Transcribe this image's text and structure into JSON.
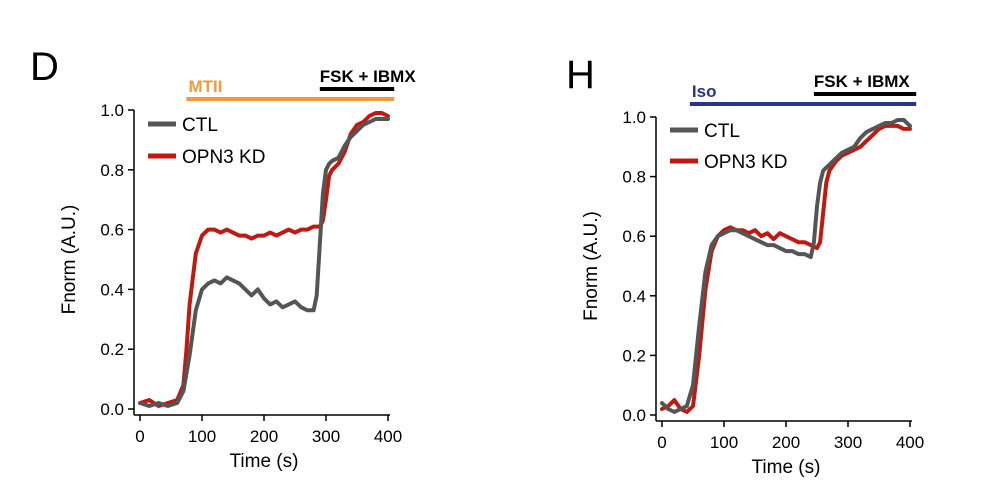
{
  "chart_data": [
    {
      "type": "line",
      "panel": "D",
      "xlabel": "Time (s)",
      "ylabel": "Fnorm  (A.U.)",
      "xlim": [
        0,
        400
      ],
      "ylim": [
        0,
        1.0
      ],
      "xticks": [
        "0",
        "100",
        "200",
        "300",
        "400"
      ],
      "yticks": [
        "0.0",
        "0.2",
        "0.4",
        "0.6",
        "0.8",
        "1.0"
      ],
      "legend_position": "top-left",
      "treatments": [
        {
          "label": "MTII",
          "start": 75,
          "end": 410,
          "color": "#f29a3c"
        },
        {
          "label": "FSK + IBMX",
          "start": 290,
          "end": 410,
          "color": "#000000"
        }
      ],
      "series": [
        {
          "name": "CTL",
          "color": "#555555",
          "x": [
            0,
            15,
            30,
            45,
            60,
            70,
            80,
            90,
            100,
            110,
            120,
            130,
            140,
            150,
            160,
            170,
            180,
            190,
            200,
            210,
            220,
            230,
            240,
            250,
            260,
            270,
            280,
            285,
            290,
            295,
            300,
            305,
            310,
            320,
            330,
            340,
            350,
            360,
            370,
            380,
            390,
            400
          ],
          "y": [
            0.02,
            0.01,
            0.02,
            0.01,
            0.02,
            0.06,
            0.18,
            0.33,
            0.4,
            0.42,
            0.43,
            0.42,
            0.44,
            0.43,
            0.42,
            0.4,
            0.38,
            0.4,
            0.37,
            0.35,
            0.36,
            0.34,
            0.35,
            0.36,
            0.34,
            0.33,
            0.33,
            0.38,
            0.55,
            0.72,
            0.8,
            0.82,
            0.83,
            0.84,
            0.88,
            0.91,
            0.93,
            0.95,
            0.96,
            0.97,
            0.97,
            0.97
          ]
        },
        {
          "name": "OPN3 KD",
          "color": "#c0190f",
          "x": [
            0,
            15,
            30,
            45,
            60,
            70,
            75,
            80,
            90,
            100,
            110,
            120,
            130,
            140,
            150,
            160,
            170,
            180,
            190,
            200,
            210,
            220,
            230,
            240,
            250,
            260,
            270,
            280,
            290,
            295,
            300,
            305,
            310,
            320,
            330,
            340,
            350,
            360,
            370,
            380,
            390,
            400
          ],
          "y": [
            0.02,
            0.03,
            0.01,
            0.02,
            0.03,
            0.08,
            0.2,
            0.35,
            0.52,
            0.58,
            0.6,
            0.6,
            0.59,
            0.6,
            0.59,
            0.58,
            0.58,
            0.57,
            0.58,
            0.58,
            0.59,
            0.58,
            0.59,
            0.6,
            0.59,
            0.6,
            0.6,
            0.61,
            0.61,
            0.63,
            0.7,
            0.78,
            0.8,
            0.82,
            0.86,
            0.92,
            0.95,
            0.96,
            0.98,
            0.99,
            0.99,
            0.98
          ]
        }
      ]
    },
    {
      "type": "line",
      "panel": "H",
      "xlabel": "Time (s)",
      "ylabel": "Fnorm  (A.U.)",
      "xlim": [
        0,
        400
      ],
      "ylim": [
        0,
        1.0
      ],
      "xticks": [
        "0",
        "100",
        "200",
        "300",
        "400"
      ],
      "yticks": [
        "0.0",
        "0.2",
        "0.4",
        "0.6",
        "0.8",
        "1.0"
      ],
      "legend_position": "top-left",
      "treatments": [
        {
          "label": "Iso",
          "start": 45,
          "end": 410,
          "color": "#29348f"
        },
        {
          "label": "FSK + IBMX",
          "start": 245,
          "end": 410,
          "color": "#000000"
        }
      ],
      "series": [
        {
          "name": "CTL",
          "color": "#555555",
          "x": [
            0,
            10,
            20,
            30,
            40,
            50,
            60,
            70,
            80,
            90,
            100,
            110,
            120,
            130,
            140,
            150,
            160,
            170,
            180,
            190,
            200,
            210,
            220,
            230,
            240,
            245,
            250,
            255,
            260,
            270,
            280,
            290,
            300,
            310,
            320,
            330,
            340,
            350,
            360,
            370,
            380,
            390,
            400
          ],
          "y": [
            0.04,
            0.02,
            0.01,
            0.02,
            0.03,
            0.1,
            0.3,
            0.48,
            0.57,
            0.6,
            0.61,
            0.62,
            0.62,
            0.61,
            0.6,
            0.59,
            0.58,
            0.57,
            0.57,
            0.56,
            0.55,
            0.55,
            0.54,
            0.54,
            0.53,
            0.58,
            0.7,
            0.78,
            0.82,
            0.84,
            0.86,
            0.88,
            0.89,
            0.9,
            0.93,
            0.95,
            0.96,
            0.97,
            0.98,
            0.98,
            0.99,
            0.99,
            0.97
          ]
        },
        {
          "name": "OPN3 KD",
          "color": "#c0190f",
          "x": [
            0,
            10,
            20,
            30,
            40,
            50,
            60,
            70,
            80,
            90,
            100,
            110,
            120,
            130,
            140,
            150,
            160,
            170,
            180,
            190,
            200,
            210,
            220,
            230,
            240,
            250,
            255,
            260,
            265,
            270,
            280,
            290,
            300,
            310,
            320,
            330,
            340,
            350,
            360,
            370,
            380,
            390,
            400
          ],
          "y": [
            0.02,
            0.03,
            0.05,
            0.02,
            0.01,
            0.03,
            0.2,
            0.42,
            0.55,
            0.6,
            0.62,
            0.63,
            0.62,
            0.62,
            0.61,
            0.62,
            0.6,
            0.61,
            0.59,
            0.61,
            0.6,
            0.59,
            0.58,
            0.58,
            0.57,
            0.56,
            0.58,
            0.68,
            0.78,
            0.82,
            0.85,
            0.87,
            0.88,
            0.89,
            0.9,
            0.92,
            0.94,
            0.96,
            0.97,
            0.97,
            0.97,
            0.96,
            0.96
          ]
        }
      ]
    }
  ]
}
